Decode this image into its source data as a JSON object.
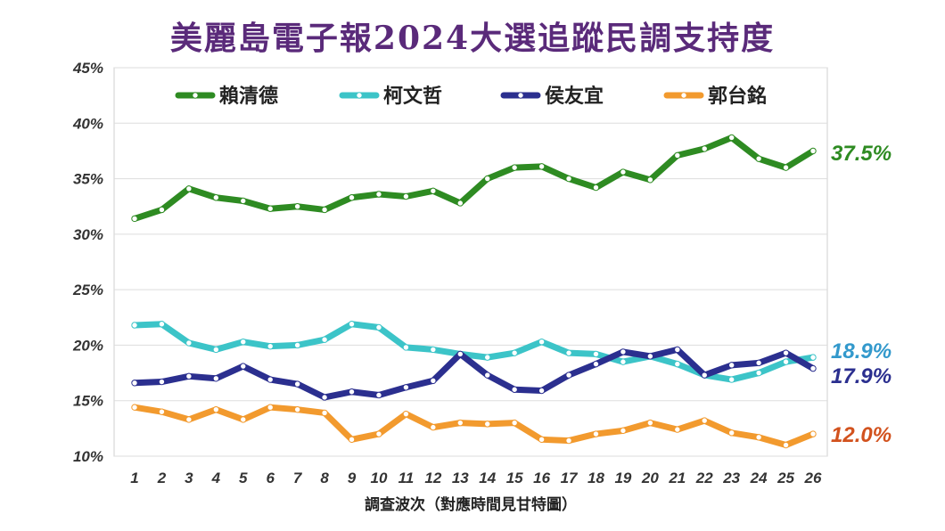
{
  "chart_data": {
    "type": "line",
    "title": "美麗島電子報2024大選追蹤民調支持度",
    "xlabel": "調查波次（對應時間見甘特圖）",
    "ylabel": "",
    "ylim": [
      10,
      45
    ],
    "yticks": [
      "10%",
      "15%",
      "20%",
      "25%",
      "30%",
      "35%",
      "40%",
      "45%"
    ],
    "grid": true,
    "legend_position": "top",
    "categories": [
      "1",
      "2",
      "3",
      "4",
      "5",
      "6",
      "7",
      "8",
      "9",
      "10",
      "11",
      "12",
      "13",
      "14",
      "15",
      "16",
      "17",
      "18",
      "19",
      "20",
      "21",
      "22",
      "23",
      "24",
      "25",
      "26"
    ],
    "series": [
      {
        "name": "賴清德",
        "color": "#2e8b22",
        "end_label": "37.5%",
        "label_color": "#2e8b22",
        "values": [
          31.4,
          32.2,
          34.1,
          33.3,
          33.0,
          32.3,
          32.5,
          32.2,
          33.3,
          33.6,
          33.4,
          33.9,
          32.8,
          35.0,
          36.0,
          36.1,
          35.0,
          34.2,
          35.6,
          34.9,
          37.1,
          37.7,
          38.7,
          36.8,
          36.0,
          37.5
        ]
      },
      {
        "name": "柯文哲",
        "color": "#3cc4c8",
        "end_label": "18.9%",
        "label_color": "#3399cc",
        "values": [
          21.8,
          21.9,
          20.2,
          19.6,
          20.3,
          19.9,
          20.0,
          20.5,
          21.9,
          21.6,
          19.8,
          19.6,
          19.2,
          18.9,
          19.3,
          20.3,
          19.3,
          19.2,
          18.5,
          19.0,
          18.3,
          17.3,
          16.9,
          17.5,
          18.5,
          18.9
        ]
      },
      {
        "name": "侯友宜",
        "color": "#2b2f8f",
        "end_label": "17.9%",
        "label_color": "#2b2f8f",
        "values": [
          16.6,
          16.7,
          17.2,
          17.0,
          18.1,
          16.9,
          16.5,
          15.3,
          15.8,
          15.5,
          16.2,
          16.8,
          19.2,
          17.3,
          16.0,
          15.9,
          17.3,
          18.3,
          19.4,
          19.0,
          19.6,
          17.3,
          18.2,
          18.4,
          19.3,
          17.9
        ]
      },
      {
        "name": "郭台銘",
        "color": "#f29a2e",
        "end_label": "12.0%",
        "label_color": "#d2521e",
        "values": [
          14.4,
          14.0,
          13.3,
          14.2,
          13.3,
          14.4,
          14.2,
          13.9,
          11.5,
          12.0,
          13.8,
          12.6,
          13.0,
          12.9,
          13.0,
          11.5,
          11.4,
          12.0,
          12.3,
          13.0,
          12.4,
          13.2,
          12.1,
          11.7,
          11.0,
          12.0
        ]
      }
    ]
  }
}
